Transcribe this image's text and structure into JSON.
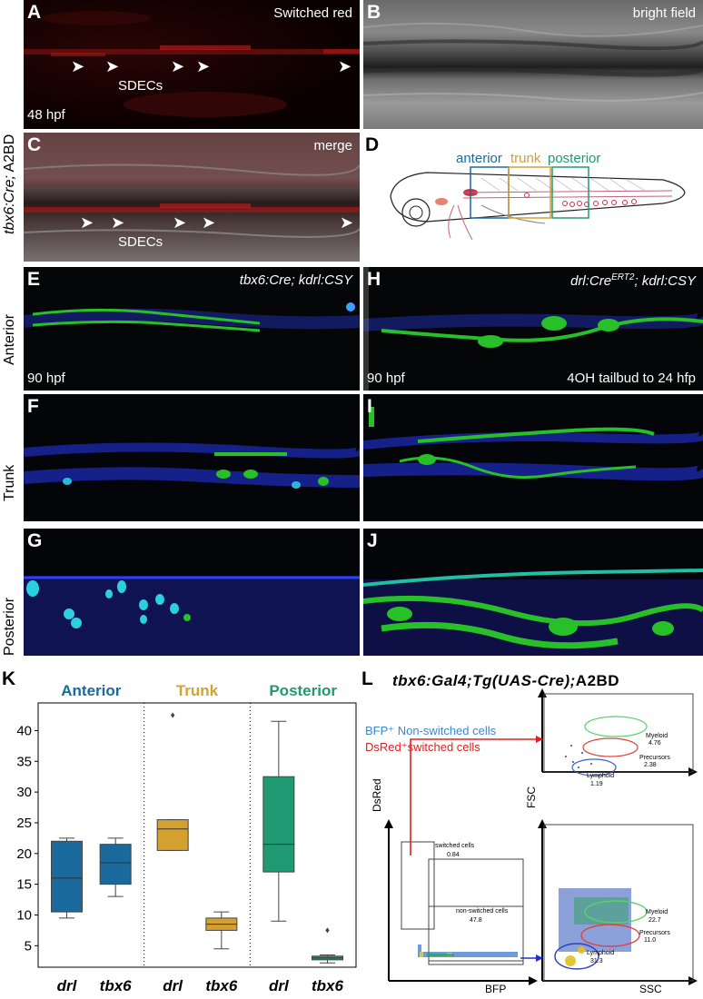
{
  "panels": {
    "A": {
      "letter": "A",
      "title": "Switched red",
      "caption": "SDECs",
      "stage": "48 hpf"
    },
    "B": {
      "letter": "B",
      "title": "bright field"
    },
    "C": {
      "letter": "C",
      "title": "merge",
      "caption": "SDECs"
    },
    "D": {
      "letter": "D",
      "regions": [
        "anterior",
        "trunk",
        "posterior"
      ]
    },
    "E": {
      "letter": "E",
      "title": "tbx6:Cre; kdrl:CSY",
      "stage": "90 hpf"
    },
    "F": {
      "letter": "F"
    },
    "G": {
      "letter": "G"
    },
    "H": {
      "letter": "H",
      "title_pre": "drl:Cre",
      "title_sup": "ERT2",
      "title_post": "; kdrl:CSY",
      "stage": "90 hpf",
      "treatment": "4OH tailbud to 24 hfp"
    },
    "I": {
      "letter": "I"
    },
    "J": {
      "letter": "J"
    },
    "K": {
      "letter": "K"
    },
    "L": {
      "letter": "L",
      "title_a": "tbx6:Gal4;Tg(UAS-Cre);",
      "title_b": "A2BD"
    }
  },
  "side_labels": {
    "genotype_italic": "tbx6:Cre;",
    "genotype_plain": " A2BD",
    "anterior": "Anterior",
    "trunk": "Trunk",
    "posterior": "Posterior"
  },
  "colors": {
    "anterior": "#1a6a9e",
    "trunk": "#d4a030",
    "posterior": "#1f9a72",
    "green_fluor": "#2ecc2e",
    "blue_fluor": "#2030d0",
    "red_fluor": "#cc2020"
  },
  "chart_data": {
    "type": "box",
    "groups": [
      {
        "name": "Anterior",
        "color": "#1a6a9e",
        "categories": [
          "drl",
          "tbx6"
        ]
      },
      {
        "name": "Trunk",
        "color": "#d4a030",
        "categories": [
          "drl",
          "tbx6"
        ]
      },
      {
        "name": "Posterior",
        "color": "#1f9a72",
        "categories": [
          "drl",
          "tbx6"
        ]
      }
    ],
    "boxes": [
      {
        "group": "Anterior",
        "label": "drl",
        "min": 9.5,
        "q1": 10.5,
        "median": 16,
        "q3": 22,
        "max": 22.5,
        "outliers": []
      },
      {
        "group": "Anterior",
        "label": "tbx6",
        "min": 13,
        "q1": 15,
        "median": 18.5,
        "q3": 21.5,
        "max": 22.5,
        "outliers": []
      },
      {
        "group": "Trunk",
        "label": "drl",
        "min": 20.5,
        "q1": 20.5,
        "median": 24,
        "q3": 25.5,
        "max": 25.5,
        "outliers": [
          42.5
        ]
      },
      {
        "group": "Trunk",
        "label": "tbx6",
        "min": 4.5,
        "q1": 7.5,
        "median": 8.5,
        "q3": 9.5,
        "max": 10.5,
        "outliers": []
      },
      {
        "group": "Posterior",
        "label": "drl",
        "min": 9,
        "q1": 17,
        "median": 21.5,
        "q3": 32.5,
        "max": 41.5,
        "outliers": []
      },
      {
        "group": "Posterior",
        "label": "tbx6",
        "min": 2.2,
        "q1": 2.7,
        "median": 3,
        "q3": 3.3,
        "max": 3.5,
        "outliers": [
          7.5
        ]
      }
    ],
    "yticks": [
      5,
      10,
      15,
      20,
      25,
      30,
      35,
      40
    ],
    "ylim": [
      1.5,
      44.5
    ]
  },
  "flow": {
    "legend_blue": "BFP⁺ Non-switched cells",
    "legend_red": "DsRed⁺switched cells",
    "axis_dsred": "DsRed",
    "axis_bfp": "BFP",
    "axis_fsc": "FSC",
    "axis_ssc": "SSC",
    "gate_switched": "switched cells",
    "gate_switched_val": "0.84",
    "gate_nonswitched": "non-switched cells",
    "gate_nonswitched_val": "47.8",
    "top": {
      "myeloid": "Myeloid",
      "myeloid_val": "4.76",
      "precursors": "Precursors",
      "precursors_val": "2.38",
      "lymphoid": "Lymphoid",
      "lymphoid_val": "1.19"
    },
    "bottom": {
      "myeloid": "Myeloid",
      "myeloid_val": "22.7",
      "precursors": "Precursors",
      "precursors_val": "11.0",
      "lymphoid": "Lymphoid",
      "lymphoid_val": "31.3"
    }
  }
}
